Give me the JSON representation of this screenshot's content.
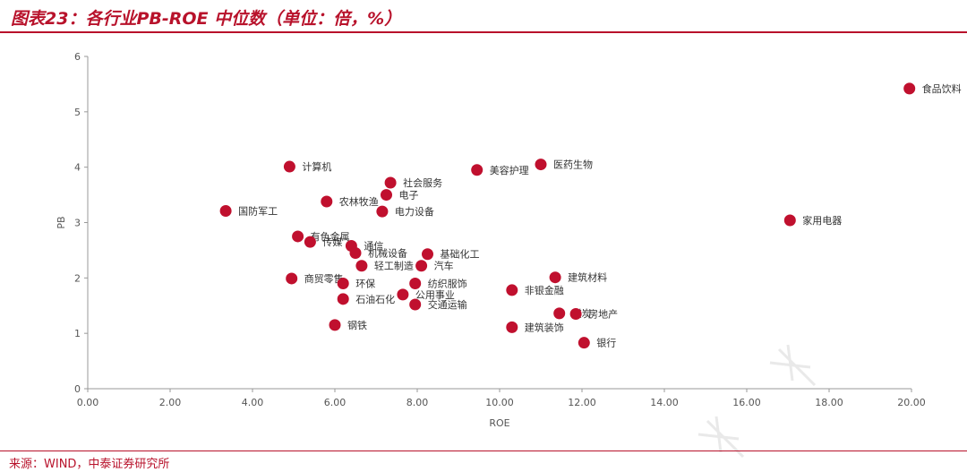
{
  "header": {
    "title": "图表23：各行业PB-ROE 中位数（单位：倍，%）"
  },
  "footer": {
    "source": "来源：WIND，中泰证券研究所"
  },
  "colors": {
    "accent": "#b8122b",
    "marker": "#c0102e",
    "axis": "#999999"
  },
  "chart_data": {
    "type": "scatter",
    "title": "",
    "xlabel": "ROE",
    "ylabel": "PB",
    "xlim": [
      0,
      20
    ],
    "ylim": [
      0,
      6
    ],
    "xticks": [
      "0.00",
      "2.00",
      "4.00",
      "6.00",
      "8.00",
      "10.00",
      "12.00",
      "14.00",
      "16.00",
      "18.00",
      "20.00"
    ],
    "yticks": [
      "0",
      "1",
      "2",
      "3",
      "4",
      "5",
      "6"
    ],
    "grid": false,
    "points": [
      {
        "name": "食品饮料",
        "x": 19.95,
        "y": 5.42
      },
      {
        "name": "医药生物",
        "x": 11.0,
        "y": 4.05
      },
      {
        "name": "美容护理",
        "x": 9.45,
        "y": 3.95
      },
      {
        "name": "计算机",
        "x": 4.9,
        "y": 4.01
      },
      {
        "name": "社会服务",
        "x": 7.35,
        "y": 3.72
      },
      {
        "name": "电子",
        "x": 7.25,
        "y": 3.5
      },
      {
        "name": "农林牧渔",
        "x": 5.8,
        "y": 3.38
      },
      {
        "name": "电力设备",
        "x": 7.15,
        "y": 3.2
      },
      {
        "name": "国防军工",
        "x": 3.35,
        "y": 3.21
      },
      {
        "name": "家用电器",
        "x": 17.05,
        "y": 3.04
      },
      {
        "name": "有色金属",
        "x": 5.1,
        "y": 2.75
      },
      {
        "name": "传媒",
        "x": 5.4,
        "y": 2.65
      },
      {
        "name": "通信",
        "x": 6.4,
        "y": 2.58
      },
      {
        "name": "机械设备",
        "x": 6.5,
        "y": 2.45
      },
      {
        "name": "基础化工",
        "x": 8.25,
        "y": 2.43
      },
      {
        "name": "轻工制造",
        "x": 6.65,
        "y": 2.22
      },
      {
        "name": "汽车",
        "x": 8.1,
        "y": 2.22
      },
      {
        "name": "建筑材料",
        "x": 11.35,
        "y": 2.01
      },
      {
        "name": "商贸零售",
        "x": 4.95,
        "y": 1.99
      },
      {
        "name": "环保",
        "x": 6.2,
        "y": 1.9
      },
      {
        "name": "纺织服饰",
        "x": 7.95,
        "y": 1.9
      },
      {
        "name": "非银金融",
        "x": 10.3,
        "y": 1.78
      },
      {
        "name": "公用事业",
        "x": 7.65,
        "y": 1.7
      },
      {
        "name": "石油石化",
        "x": 6.2,
        "y": 1.62
      },
      {
        "name": "交通运输",
        "x": 7.95,
        "y": 1.52
      },
      {
        "name": "煤炭",
        "x": 11.45,
        "y": 1.36
      },
      {
        "name": "房地产",
        "x": 11.85,
        "y": 1.35
      },
      {
        "name": "钢铁",
        "x": 6.0,
        "y": 1.15
      },
      {
        "name": "建筑装饰",
        "x": 10.3,
        "y": 1.11
      },
      {
        "name": "银行",
        "x": 12.05,
        "y": 0.83
      }
    ]
  }
}
